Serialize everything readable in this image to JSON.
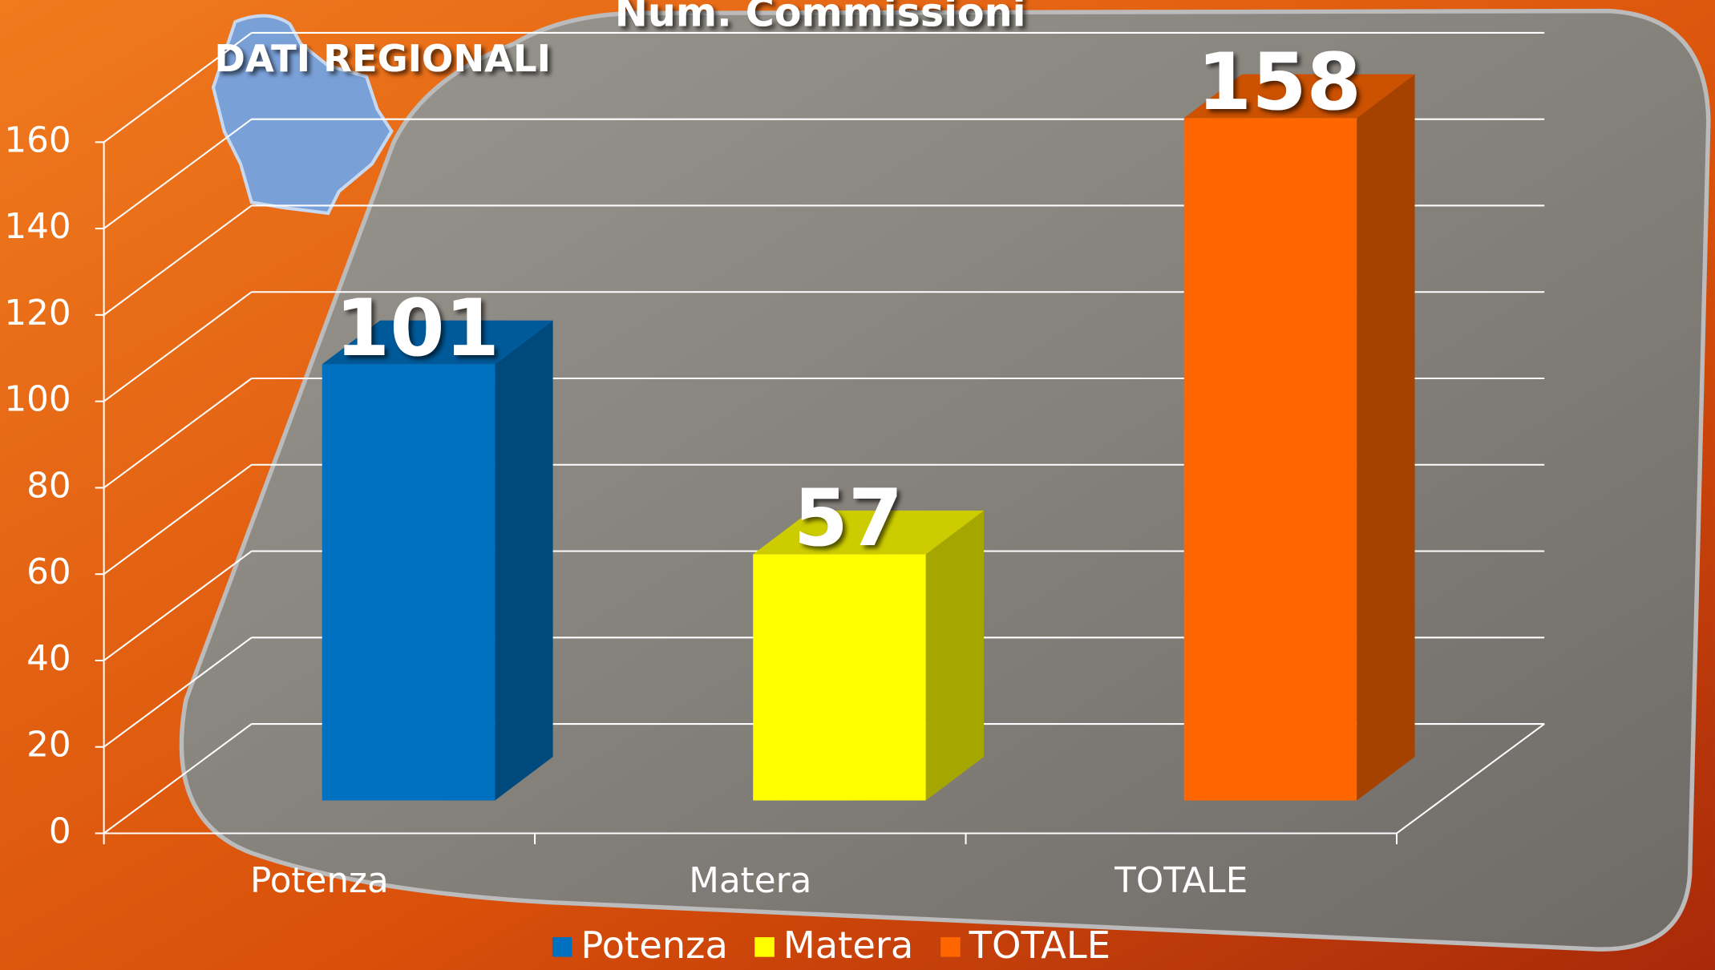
{
  "chart_data": {
    "type": "bar3d",
    "title": "Num. Commissioni",
    "subtitle": "DATI REGIONALI",
    "categories": [
      "Potenza",
      "Matera",
      "TOTALE"
    ],
    "values": [
      101,
      57,
      158
    ],
    "colors": [
      "#0070c0",
      "#ffff00",
      "#ff6600"
    ],
    "ylim": [
      0,
      160
    ],
    "yticks": [
      0,
      20,
      40,
      60,
      80,
      100,
      120,
      140,
      160
    ],
    "grid": true,
    "legend": "bottom"
  }
}
